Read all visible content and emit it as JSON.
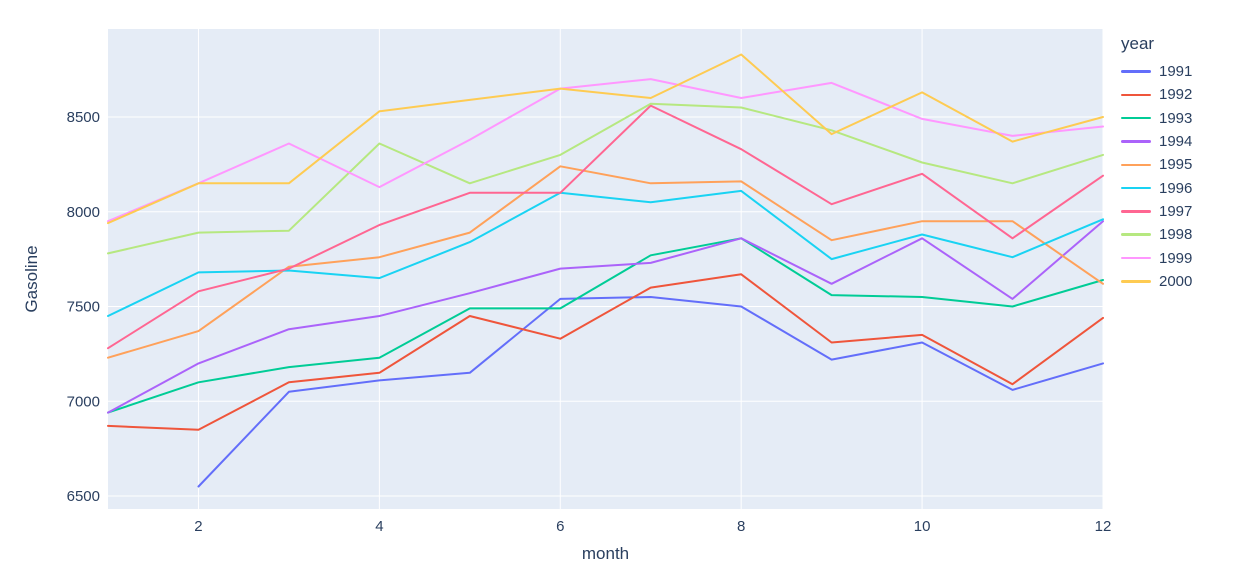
{
  "chart_data": {
    "type": "line",
    "title": "",
    "xlabel": "month",
    "ylabel": "Gasoline",
    "legend_title": "year",
    "legend_position": "right",
    "grid": true,
    "plot_bg": "#E5ECF6",
    "grid_color": "#FFFFFF",
    "text_color": "#2a3f5f",
    "x": [
      1,
      2,
      3,
      4,
      5,
      6,
      7,
      8,
      9,
      10,
      11,
      12
    ],
    "x_ticks": [
      2,
      4,
      6,
      8,
      10,
      12
    ],
    "y_ticks": [
      6500,
      7000,
      7500,
      8000,
      8500
    ],
    "xlim": [
      1,
      12
    ],
    "ylim": [
      6400,
      8960
    ],
    "series": [
      {
        "name": "1991",
        "color": "#636EFA",
        "values": [
          null,
          6550,
          7050,
          7110,
          7150,
          7540,
          7550,
          7500,
          7220,
          7310,
          7060,
          7200
        ]
      },
      {
        "name": "1992",
        "color": "#EF553B",
        "values": [
          6870,
          6850,
          7100,
          7150,
          7450,
          7330,
          7600,
          7670,
          7310,
          7350,
          7090,
          7440
        ]
      },
      {
        "name": "1993",
        "color": "#00CC96",
        "values": [
          6940,
          7100,
          7180,
          7230,
          7490,
          7490,
          7770,
          7860,
          7560,
          7550,
          7500,
          7640
        ]
      },
      {
        "name": "1994",
        "color": "#AB63FA",
        "values": [
          6940,
          7200,
          7380,
          7450,
          7570,
          7700,
          7730,
          7860,
          7620,
          7860,
          7540,
          7950
        ]
      },
      {
        "name": "1995",
        "color": "#FFA15A",
        "values": [
          7230,
          7370,
          7710,
          7760,
          7890,
          8240,
          8150,
          8160,
          7850,
          7950,
          7950,
          7620
        ]
      },
      {
        "name": "1996",
        "color": "#19D3F3",
        "values": [
          7450,
          7680,
          7690,
          7650,
          7840,
          8100,
          8050,
          8110,
          7750,
          7880,
          7760,
          7960
        ]
      },
      {
        "name": "1997",
        "color": "#FF6692",
        "values": [
          7280,
          7580,
          7700,
          7930,
          8100,
          8100,
          8560,
          8330,
          8040,
          8200,
          7860,
          8190
        ]
      },
      {
        "name": "1998",
        "color": "#B6E880",
        "values": [
          7780,
          7890,
          7900,
          8360,
          8150,
          8300,
          8570,
          8550,
          8430,
          8260,
          8150,
          8300
        ]
      },
      {
        "name": "1999",
        "color": "#FF97FF",
        "values": [
          7950,
          8150,
          8360,
          8130,
          8380,
          8650,
          8700,
          8600,
          8680,
          8490,
          8400,
          8450
        ]
      },
      {
        "name": "2000",
        "color": "#FECB52",
        "values": [
          7940,
          8150,
          8150,
          8530,
          8590,
          8650,
          8600,
          8830,
          8410,
          8630,
          8370,
          8500
        ]
      }
    ]
  }
}
